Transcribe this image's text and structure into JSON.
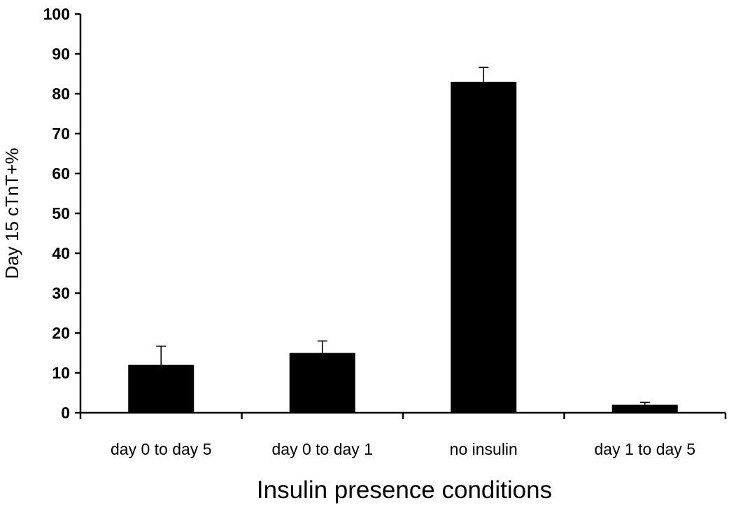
{
  "chart_data": {
    "type": "bar",
    "title": "",
    "xlabel": "Insulin presence conditions",
    "ylabel": "Day 15 cTnT+%",
    "categories": [
      "day 0 to day 5",
      "day 0 to day 1",
      "no insulin",
      "day 1 to day 5"
    ],
    "series": [
      {
        "values": [
          12,
          15,
          83,
          2
        ],
        "error_plus": [
          4.7,
          3.0,
          3.6,
          0.6
        ]
      }
    ],
    "ylim": [
      0,
      100
    ],
    "yticks": [
      0,
      10,
      20,
      30,
      40,
      50,
      60,
      70,
      80,
      90,
      100
    ],
    "ytick_labels": [
      "0",
      "10",
      "20",
      "30",
      "40",
      "50",
      "60",
      "70",
      "80",
      "90",
      "100"
    ],
    "grid": false,
    "legend": "none",
    "bar_color": "#000000"
  }
}
